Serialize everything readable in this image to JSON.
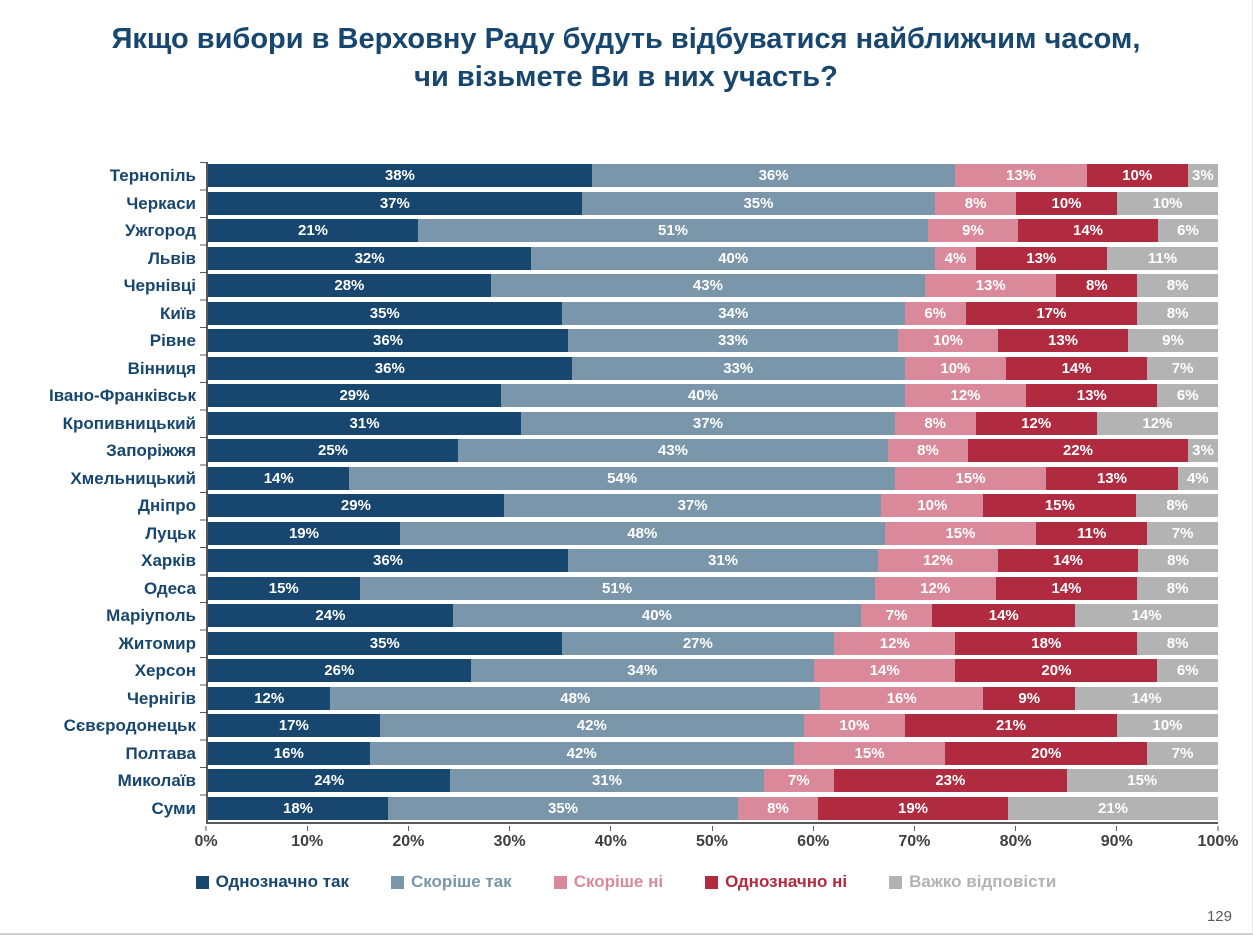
{
  "page": {
    "number": "129"
  },
  "title": {
    "line1": "Якщо вибори в Верховну Раду будуть відбуватися найближчим часом,",
    "line2": "чи візьмете Ви в них участь?"
  },
  "chart_data": {
    "type": "bar",
    "stacked": true,
    "orientation": "horizontal",
    "title": "Якщо вибори в Верховну Раду будуть відбуватися найближчим часом, чи візьмете Ви в них участь?",
    "xlabel": "",
    "ylabel": "",
    "xlim": [
      0,
      100
    ],
    "x_ticks": [
      "0%",
      "10%",
      "20%",
      "30%",
      "40%",
      "50%",
      "60%",
      "70%",
      "80%",
      "90%",
      "100%"
    ],
    "legend_position": "bottom",
    "grid": false,
    "categories": [
      "Тернопіль",
      "Черкаси",
      "Ужгород",
      "Львів",
      "Чернівці",
      "Київ",
      "Рівне",
      "Вінниця",
      "Івано-Франківськ",
      "Кропивницький",
      "Запоріжжя",
      "Хмельницький",
      "Дніпро",
      "Луцьк",
      "Харків",
      "Одеса",
      "Маріуполь",
      "Житомир",
      "Херсон",
      "Чернігів",
      "Сєвєродонецьк",
      "Полтава",
      "Миколаїв",
      "Суми"
    ],
    "series": [
      {
        "name": "Однозначно так",
        "color": "#17466e",
        "values": [
          38,
          37,
          21,
          32,
          28,
          35,
          36,
          36,
          29,
          31,
          25,
          14,
          29,
          19,
          36,
          15,
          24,
          35,
          26,
          12,
          17,
          16,
          24,
          18
        ]
      },
      {
        "name": "Скоріше так",
        "color": "#7a96ab",
        "values": [
          36,
          35,
          51,
          40,
          43,
          34,
          33,
          33,
          40,
          37,
          43,
          54,
          37,
          48,
          31,
          51,
          40,
          27,
          34,
          48,
          42,
          42,
          31,
          35
        ]
      },
      {
        "name": "Скоріше ні",
        "color": "#d9899a",
        "values": [
          13,
          8,
          9,
          4,
          13,
          6,
          10,
          10,
          12,
          8,
          8,
          15,
          10,
          15,
          12,
          12,
          7,
          12,
          14,
          16,
          10,
          15,
          7,
          8
        ]
      },
      {
        "name": "Однозначно ні",
        "color": "#b02a40",
        "values": [
          10,
          10,
          14,
          13,
          8,
          17,
          13,
          14,
          13,
          12,
          22,
          13,
          15,
          11,
          14,
          14,
          14,
          18,
          20,
          9,
          21,
          20,
          23,
          19
        ]
      },
      {
        "name": "Важко відповісти",
        "color": "#b3b3b3",
        "values": [
          3,
          10,
          6,
          11,
          8,
          8,
          9,
          7,
          6,
          12,
          3,
          4,
          8,
          7,
          8,
          8,
          14,
          8,
          6,
          14,
          10,
          7,
          15,
          21
        ]
      }
    ]
  }
}
